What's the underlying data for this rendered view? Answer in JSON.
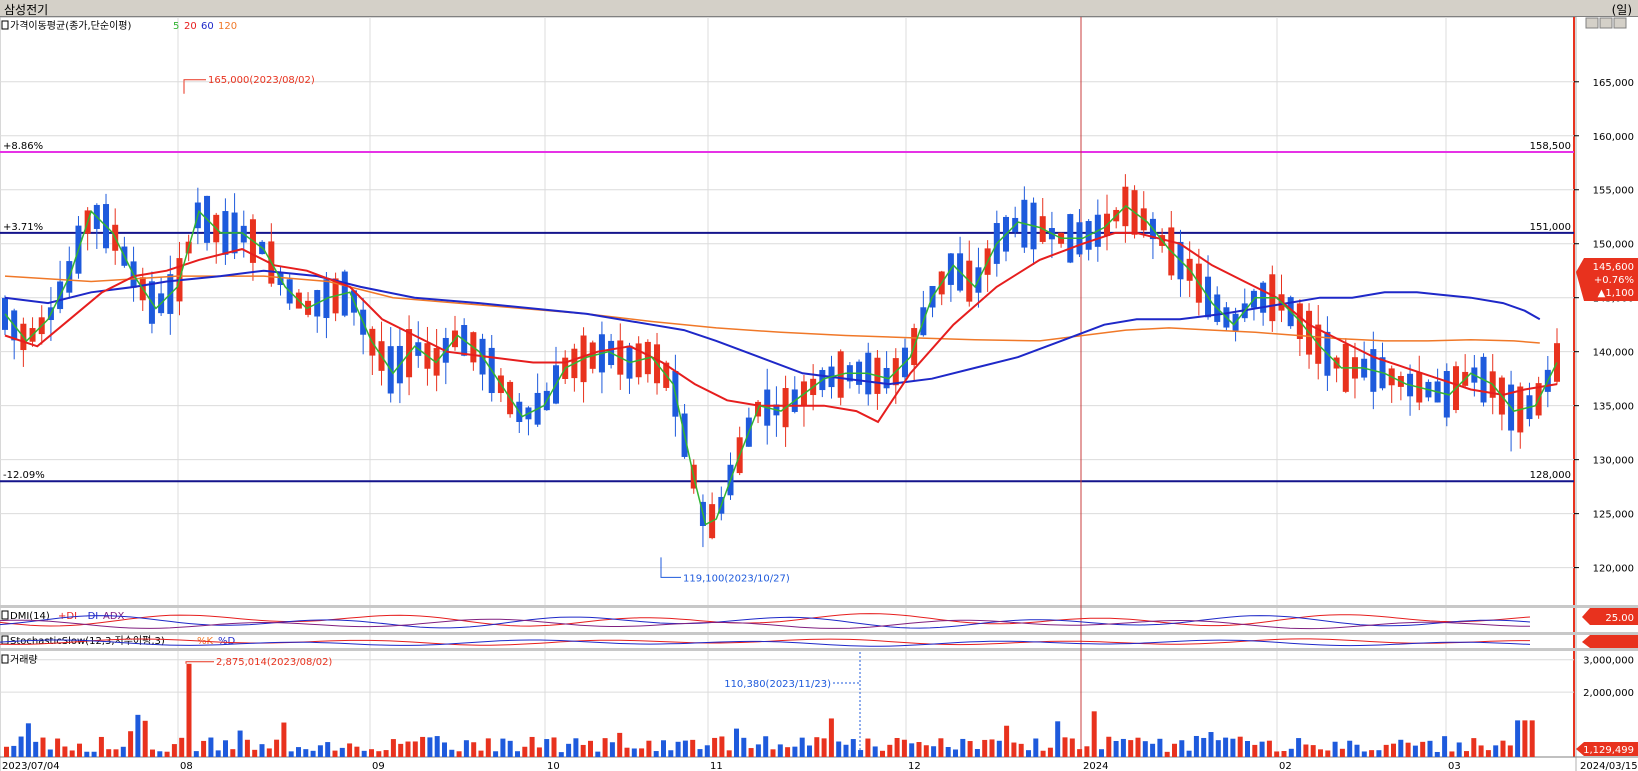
{
  "window": {
    "title": "삼성전기",
    "unit": "(일)"
  },
  "colors": {
    "up": "#e8321e",
    "down": "#1e5adc",
    "ma5": "#32b432",
    "ma20": "#e61e1e",
    "ma60": "#1e28c8",
    "ma120": "#f07828",
    "magenta": "#e632e6",
    "navy": "#14148c"
  },
  "panels": {
    "price": {
      "label": "가격이동평균(종가,단순이평)",
      "ma_labels": [
        "5",
        "20",
        "60",
        "120"
      ]
    },
    "dmi": {
      "label": "DMI(14)",
      "legend": [
        "+DI",
        "-DI",
        "ADX"
      ],
      "badge": "25.00"
    },
    "stoch": {
      "label": "StochasticSlow(12,3,지수이평,3)",
      "legend": [
        "%K",
        "%D"
      ]
    },
    "volume": {
      "label": "거래량"
    }
  },
  "chart_data": {
    "type": "candlestick",
    "yticks": [
      "165,000",
      "160,000",
      "155,000",
      "150,000",
      "145,000",
      "140,000",
      "135,000",
      "130,000",
      "125,000",
      "120,000"
    ],
    "ytick_values": [
      165000,
      160000,
      155000,
      150000,
      145000,
      140000,
      135000,
      130000,
      125000,
      120000
    ],
    "ylim": [
      117000,
      171000
    ],
    "xlabels": [
      "2023/07/04",
      "08",
      "09",
      "10",
      "11",
      "12",
      "2024",
      "02",
      "03",
      "2024/03/15"
    ],
    "hlines": [
      {
        "value": 158500,
        "left": "+8.86%",
        "right": "158,500",
        "color": "magenta"
      },
      {
        "value": 151000,
        "left": "+3.71%",
        "right": "151,000",
        "color": "navy"
      },
      {
        "value": 128000,
        "left": "-12.09%",
        "right": "128,000",
        "color": "navy"
      }
    ],
    "annotations": {
      "high": {
        "text": "165,000(2023/08/02)",
        "value": 165000
      },
      "low": {
        "text": "119,100(2023/10/27)",
        "value": 119100
      },
      "vol_high": {
        "text": "2,875,014(2023/08/02)",
        "value": 2875014
      },
      "vol_mark": {
        "text": "110,380(2023/11/23)",
        "value": 110380
      }
    },
    "last": {
      "price": "145,600",
      "pct": "+0.76%",
      "chg": "▲1,100",
      "value": 145600
    },
    "volume_yticks": [
      "3,000,000",
      "2,000,000"
    ],
    "volume_ytick_values": [
      3000000,
      2000000
    ],
    "volume_last": {
      "text": "1,129,499",
      "value": 1129499
    },
    "ma_series": {
      "ma5": [
        [
          0,
          143500
        ],
        [
          10,
          141000
        ],
        [
          20,
          143000
        ],
        [
          30,
          147000
        ],
        [
          40,
          153000
        ],
        [
          50,
          151000
        ],
        [
          60,
          147000
        ],
        [
          70,
          144000
        ],
        [
          80,
          146000
        ],
        [
          90,
          153000
        ],
        [
          100,
          151000
        ],
        [
          110,
          151000
        ],
        [
          120,
          149500
        ],
        [
          130,
          146000
        ],
        [
          140,
          144000
        ],
        [
          150,
          145000
        ],
        [
          160,
          145500
        ],
        [
          170,
          141000
        ],
        [
          180,
          138000
        ],
        [
          190,
          140500
        ],
        [
          200,
          139000
        ],
        [
          210,
          141500
        ],
        [
          220,
          140000
        ],
        [
          230,
          137000
        ],
        [
          240,
          134000
        ],
        [
          250,
          135000
        ],
        [
          260,
          138500
        ],
        [
          270,
          139500
        ],
        [
          280,
          140000
        ],
        [
          290,
          139000
        ],
        [
          300,
          139500
        ],
        [
          310,
          137000
        ],
        [
          320,
          128000
        ],
        [
          325,
          124000
        ],
        [
          330,
          124500
        ],
        [
          340,
          130000
        ],
        [
          350,
          135000
        ],
        [
          360,
          134500
        ],
        [
          370,
          136000
        ],
        [
          380,
          137500
        ],
        [
          390,
          138000
        ],
        [
          400,
          138000
        ],
        [
          410,
          137500
        ],
        [
          420,
          139500
        ],
        [
          430,
          145000
        ],
        [
          440,
          148000
        ],
        [
          450,
          146000
        ],
        [
          460,
          150000
        ],
        [
          470,
          152000
        ],
        [
          480,
          151500
        ],
        [
          490,
          150500
        ],
        [
          500,
          150500
        ],
        [
          510,
          151500
        ],
        [
          520,
          153500
        ],
        [
          530,
          152000
        ],
        [
          540,
          149500
        ],
        [
          550,
          147500
        ],
        [
          560,
          144500
        ],
        [
          570,
          142500
        ],
        [
          580,
          145000
        ],
        [
          590,
          145000
        ],
        [
          600,
          143000
        ],
        [
          610,
          140500
        ],
        [
          620,
          138500
        ],
        [
          630,
          138500
        ],
        [
          640,
          138000
        ],
        [
          650,
          137000
        ],
        [
          660,
          136500
        ],
        [
          670,
          136000
        ],
        [
          680,
          138000
        ],
        [
          690,
          137000
        ],
        [
          700,
          134500
        ],
        [
          710,
          135000
        ],
        [
          720,
          139000
        ]
      ],
      "ma20": [
        [
          0,
          141500
        ],
        [
          15,
          140500
        ],
        [
          30,
          143000
        ],
        [
          45,
          145500
        ],
        [
          60,
          147000
        ],
        [
          75,
          147500
        ],
        [
          90,
          148500
        ],
        [
          110,
          149500
        ],
        [
          125,
          148000
        ],
        [
          140,
          147500
        ],
        [
          160,
          146000
        ],
        [
          175,
          143000
        ],
        [
          190,
          141500
        ],
        [
          205,
          140000
        ],
        [
          225,
          139500
        ],
        [
          245,
          139000
        ],
        [
          260,
          139000
        ],
        [
          275,
          140000
        ],
        [
          290,
          140500
        ],
        [
          305,
          139000
        ],
        [
          320,
          137000
        ],
        [
          335,
          135500
        ],
        [
          350,
          135000
        ],
        [
          365,
          135000
        ],
        [
          380,
          135000
        ],
        [
          395,
          134500
        ],
        [
          405,
          133500
        ],
        [
          420,
          138000
        ],
        [
          440,
          142500
        ],
        [
          460,
          146000
        ],
        [
          480,
          148500
        ],
        [
          500,
          150000
        ],
        [
          515,
          151000
        ],
        [
          525,
          151000
        ],
        [
          545,
          150000
        ],
        [
          560,
          148000
        ],
        [
          575,
          146500
        ],
        [
          590,
          145000
        ],
        [
          605,
          142500
        ],
        [
          620,
          141000
        ],
        [
          635,
          139500
        ],
        [
          650,
          138500
        ],
        [
          665,
          137500
        ],
        [
          680,
          136500
        ],
        [
          695,
          136000
        ],
        [
          705,
          136500
        ],
        [
          720,
          137000
        ]
      ],
      "ma60": [
        [
          0,
          145000
        ],
        [
          20,
          144500
        ],
        [
          40,
          145500
        ],
        [
          60,
          146000
        ],
        [
          75,
          146500
        ],
        [
          100,
          147000
        ],
        [
          120,
          147500
        ],
        [
          145,
          147000
        ],
        [
          165,
          146000
        ],
        [
          190,
          145000
        ],
        [
          220,
          144500
        ],
        [
          245,
          144000
        ],
        [
          270,
          143500
        ],
        [
          300,
          142500
        ],
        [
          315,
          142000
        ],
        [
          330,
          141000
        ],
        [
          350,
          139500
        ],
        [
          370,
          138000
        ],
        [
          390,
          137500
        ],
        [
          410,
          137000
        ],
        [
          430,
          137500
        ],
        [
          450,
          138500
        ],
        [
          470,
          139500
        ],
        [
          490,
          141000
        ],
        [
          510,
          142500
        ],
        [
          525,
          143000
        ],
        [
          545,
          143000
        ],
        [
          565,
          143500
        ],
        [
          580,
          144000
        ],
        [
          595,
          144500
        ],
        [
          610,
          145000
        ],
        [
          625,
          145000
        ],
        [
          640,
          145500
        ],
        [
          655,
          145500
        ],
        [
          665,
          145300
        ],
        [
          680,
          145000
        ],
        [
          695,
          144500
        ],
        [
          705,
          143800
        ],
        [
          712,
          143000
        ]
      ],
      "ma120": [
        [
          0,
          147000
        ],
        [
          40,
          146500
        ],
        [
          80,
          147000
        ],
        [
          120,
          147000
        ],
        [
          150,
          146500
        ],
        [
          180,
          145000
        ],
        [
          210,
          144500
        ],
        [
          240,
          144000
        ],
        [
          270,
          143500
        ],
        [
          300,
          142800
        ],
        [
          330,
          142200
        ],
        [
          360,
          141800
        ],
        [
          390,
          141500
        ],
        [
          420,
          141300
        ],
        [
          450,
          141100
        ],
        [
          480,
          141000
        ],
        [
          500,
          141500
        ],
        [
          520,
          142000
        ],
        [
          540,
          142200
        ],
        [
          560,
          142000
        ],
        [
          580,
          141800
        ],
        [
          600,
          141500
        ],
        [
          620,
          141200
        ],
        [
          640,
          141000
        ],
        [
          660,
          141000
        ],
        [
          680,
          141100
        ],
        [
          700,
          141000
        ],
        [
          712,
          140800
        ]
      ]
    }
  }
}
